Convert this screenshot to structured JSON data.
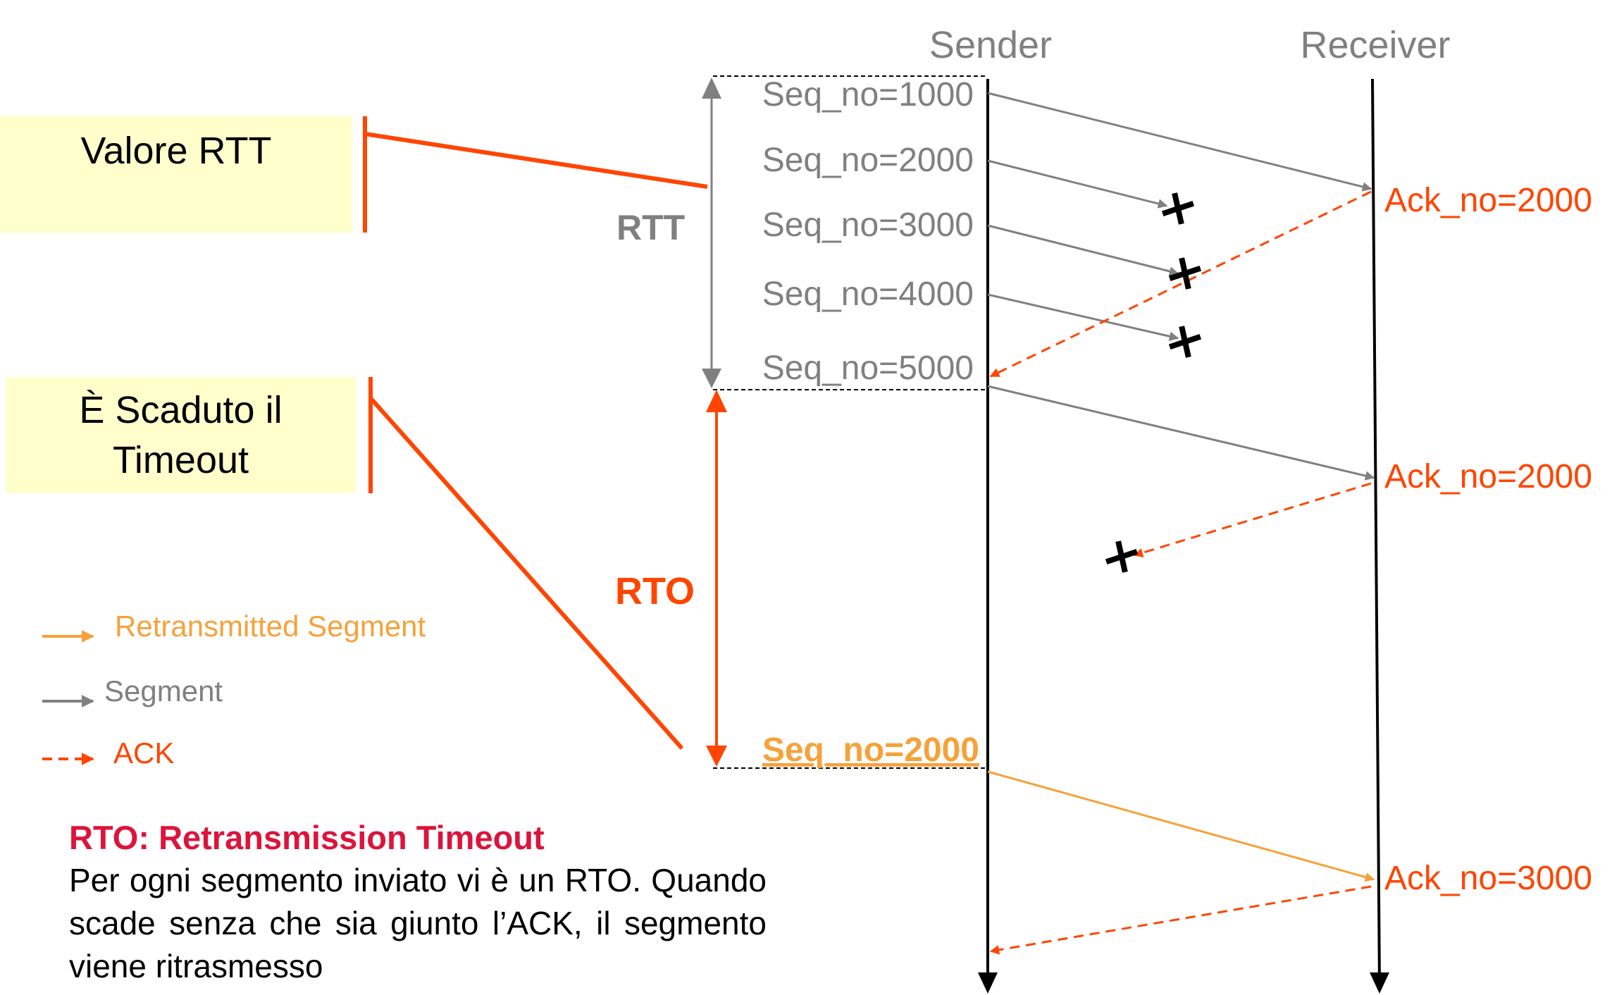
{
  "headers": {
    "sender": "Sender",
    "receiver": "Receiver"
  },
  "boxes": {
    "rtt_value": "Valore RTT",
    "timeout_line1": "È Scaduto il",
    "timeout_line2": "Timeout"
  },
  "intervals": {
    "rtt": "RTT",
    "rto": "RTO"
  },
  "segments": [
    {
      "label": "Seq_no=1000",
      "outcome": "delivered"
    },
    {
      "label": "Seq_no=2000",
      "outcome": "lost"
    },
    {
      "label": "Seq_no=3000",
      "outcome": "lost"
    },
    {
      "label": "Seq_no=4000",
      "outcome": "lost"
    },
    {
      "label": "Seq_no=5000",
      "outcome": "delivered"
    }
  ],
  "retransmission": {
    "label": "Seq_no=2000"
  },
  "acks": [
    {
      "label": "Ack_no=2000",
      "outcome": "delivered"
    },
    {
      "label": "Ack_no=2000",
      "outcome": "lost"
    },
    {
      "label": "Ack_no=3000",
      "outcome": "delivered"
    }
  ],
  "legend": {
    "retransmitted": "Retransmitted Segment",
    "segment": "Segment",
    "ack": "ACK"
  },
  "explanation": {
    "heading": "RTO: Retransmission Timeout",
    "body": "Per ogni segmento inviato vi è un RTO. Quando scade senza che sia giunto l’ACK, il segmento viene ritrasmesso"
  },
  "colors": {
    "segment": "#808080",
    "ack": "#ff4500",
    "retransmitted": "#f7a13a",
    "bracket": "#ff4500",
    "box_fill": "#ffffcc",
    "explanation_heading": "#dc143c"
  },
  "icons": {
    "loss_marker": "cross-icon"
  }
}
